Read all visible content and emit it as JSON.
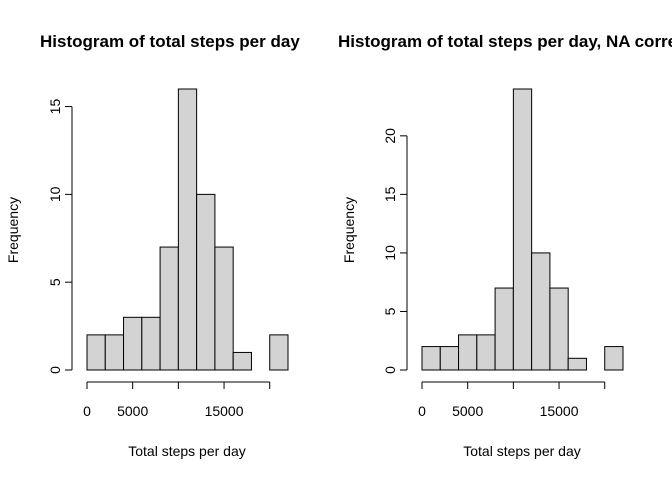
{
  "chart_data": [
    {
      "type": "bar",
      "title": "Histogram of total steps per day",
      "xlabel": "Total steps per day",
      "ylabel": "Frequency",
      "bin_edges": [
        0,
        2000,
        4000,
        6000,
        8000,
        10000,
        12000,
        14000,
        16000,
        18000,
        20000,
        22000
      ],
      "values": [
        2,
        2,
        3,
        3,
        7,
        16,
        10,
        7,
        1,
        0,
        2
      ],
      "xticks": [
        0,
        5000,
        10000,
        15000,
        20000
      ],
      "xtick_labels": [
        "0",
        "5000",
        "",
        "15000",
        ""
      ],
      "yticks": [
        0,
        5,
        10,
        15
      ],
      "ytick_labels": [
        "0",
        "5",
        "10",
        "15"
      ],
      "ylim": [
        0,
        16
      ],
      "bar_color": "#d3d3d3",
      "grid": false
    },
    {
      "type": "bar",
      "title": "Histogram of total steps per day, NA corrected",
      "xlabel": "Total steps per day",
      "ylabel": "Frequency",
      "bin_edges": [
        0,
        2000,
        4000,
        6000,
        8000,
        10000,
        12000,
        14000,
        16000,
        18000,
        20000,
        22000
      ],
      "values": [
        2,
        2,
        3,
        3,
        7,
        24,
        10,
        7,
        1,
        0,
        2
      ],
      "xticks": [
        0,
        5000,
        10000,
        15000,
        20000
      ],
      "xtick_labels": [
        "0",
        "5000",
        "",
        "15000",
        ""
      ],
      "yticks": [
        0,
        5,
        10,
        15,
        20
      ],
      "ytick_labels": [
        "0",
        "5",
        "10",
        "15",
        "20"
      ],
      "ylim": [
        0,
        24
      ],
      "bar_color": "#d3d3d3",
      "grid": false
    }
  ]
}
